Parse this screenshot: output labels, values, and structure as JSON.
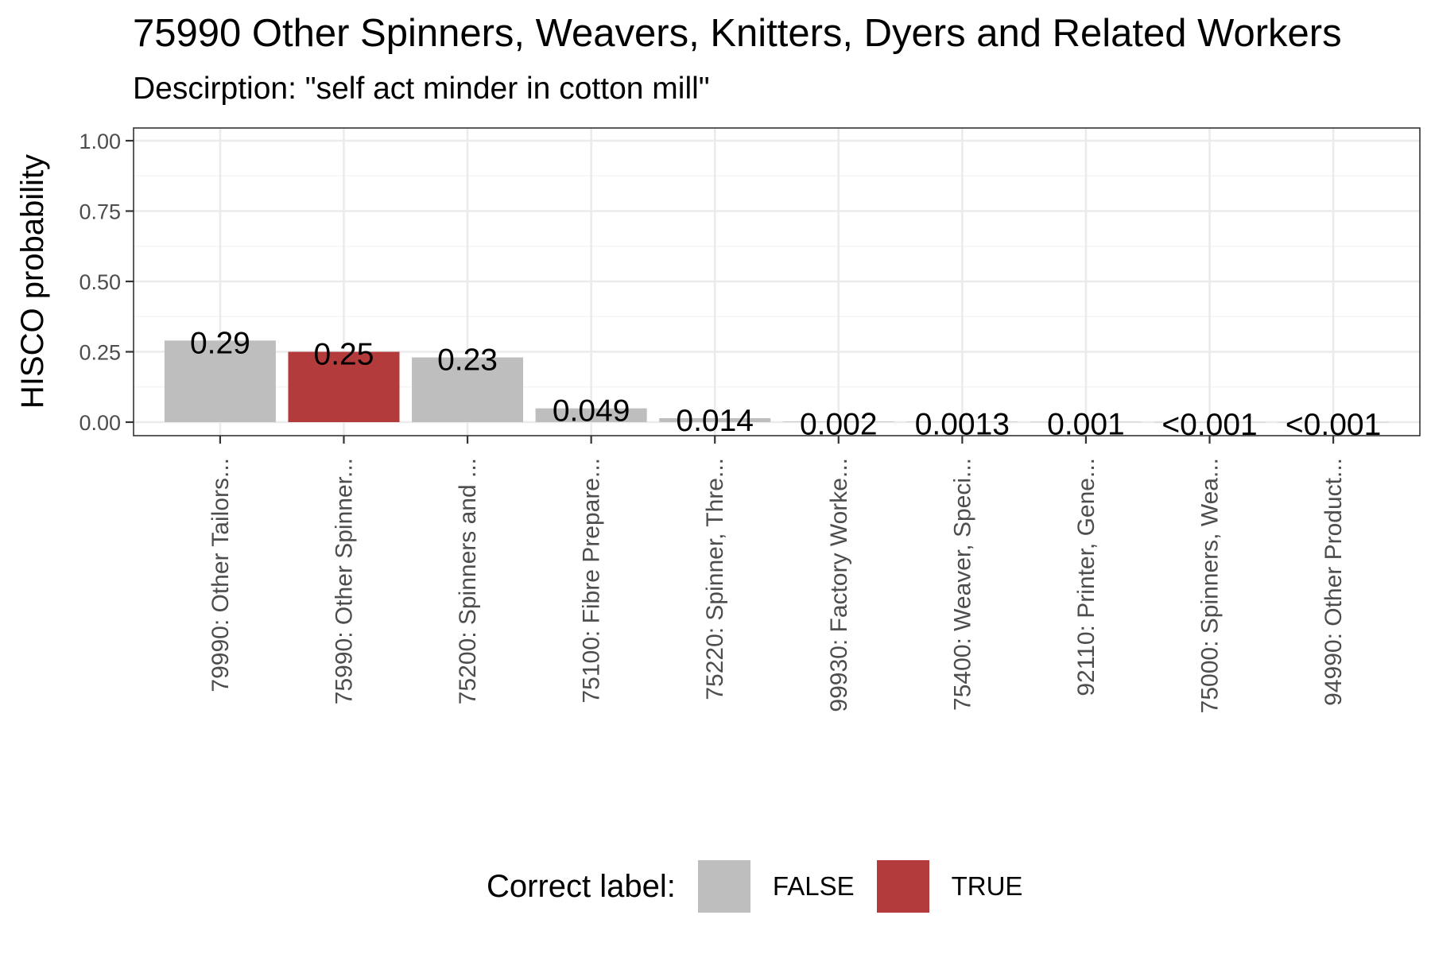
{
  "title": "75990 Other Spinners, Weavers, Knitters, Dyers and Related Workers",
  "subtitle": "Descirption: \"self act minder in cotton mill\"",
  "colors": {
    "false": "#bebebe",
    "true": "#b33b3b",
    "grid_major": "#ebebeb",
    "grid_minor": "#f5f5f5",
    "panel_border": "#333333"
  },
  "legend": {
    "title": "Correct label:",
    "items": [
      {
        "label": "FALSE",
        "color": "#bebebe"
      },
      {
        "label": "TRUE",
        "color": "#b33b3b"
      }
    ]
  },
  "chart_data": {
    "type": "bar",
    "ylabel": "HISCO probability",
    "xlabel": "",
    "ylim": [
      0,
      1.05
    ],
    "yticks": [
      "0.00",
      "0.25",
      "0.50",
      "0.75",
      "1.00"
    ],
    "grid": true,
    "legend_position": "bottom",
    "categories": [
      "79990: Other Tailors...",
      "75990: Other Spinner...",
      "75200: Spinners and ...",
      "75100: Fibre Prepare...",
      "75220: Spinner, Thre...",
      "99930: Factory Worke...",
      "75400: Weaver, Speci...",
      "92110: Printer, Gene...",
      "75000: Spinners, Wea...",
      "94990: Other Product..."
    ],
    "values": [
      0.29,
      0.25,
      0.23,
      0.049,
      0.014,
      0.002,
      0.0013,
      0.001,
      0.0005,
      0.0005
    ],
    "labels": [
      "0.29",
      "0.25",
      "0.23",
      "0.049",
      "0.014",
      "0.002",
      "0.0013",
      "0.001",
      "<0.001",
      "<0.001"
    ],
    "correct": [
      false,
      true,
      false,
      false,
      false,
      false,
      false,
      false,
      false,
      false
    ]
  }
}
